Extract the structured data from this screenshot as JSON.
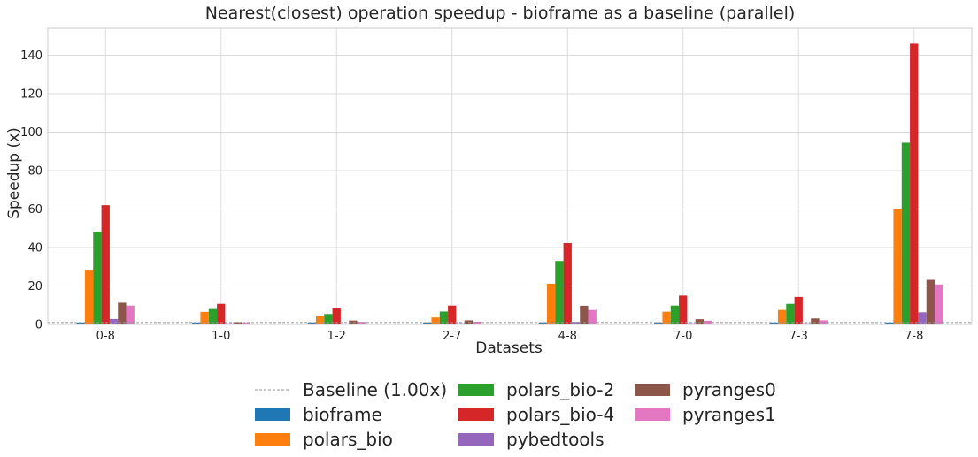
{
  "chart_data": {
    "type": "bar",
    "title": "Nearest(closest) operation speedup - bioframe as a baseline (parallel)",
    "xlabel": "Datasets",
    "ylabel": "Speedup (x)",
    "categories": [
      "0-8",
      "1-0",
      "1-2",
      "2-7",
      "4-8",
      "7-0",
      "7-3",
      "7-8"
    ],
    "ylim": [
      0,
      154
    ],
    "yticks": [
      0,
      20,
      40,
      60,
      80,
      100,
      120,
      140
    ],
    "grid": true,
    "baseline": {
      "label": "Baseline (1.00x)",
      "value": 1.0,
      "color": "#999999"
    },
    "series": [
      {
        "name": "bioframe",
        "color": "#1f77b4",
        "values": [
          1,
          1,
          1,
          1,
          1,
          1,
          1,
          1
        ]
      },
      {
        "name": "polars_bio",
        "color": "#ff7f0e",
        "values": [
          28,
          6.5,
          4.3,
          3.6,
          21.2,
          6.6,
          7.5,
          60
        ]
      },
      {
        "name": "polars_bio-2",
        "color": "#2ca02c",
        "values": [
          48.3,
          8,
          5.4,
          6.7,
          33,
          9.8,
          10.7,
          94.5
        ]
      },
      {
        "name": "polars_bio-4",
        "color": "#d62728",
        "values": [
          62,
          10.7,
          8.3,
          9.8,
          42.3,
          15,
          14.3,
          146
        ]
      },
      {
        "name": "pybedtools",
        "color": "#9467bd",
        "values": [
          2.8,
          0.6,
          0.5,
          0.6,
          1.3,
          0.6,
          0.6,
          6.3
        ]
      },
      {
        "name": "pyranges0",
        "color": "#8c564b",
        "values": [
          11.3,
          1.2,
          2,
          2.1,
          9.7,
          2.7,
          3.1,
          23.2
        ]
      },
      {
        "name": "pyranges1",
        "color": "#e377c2",
        "values": [
          9.8,
          1,
          1.3,
          1.4,
          7.5,
          1.9,
          2.1,
          20.8
        ]
      }
    ],
    "legend": {
      "placement": "bottom-center",
      "columns": 3
    }
  }
}
